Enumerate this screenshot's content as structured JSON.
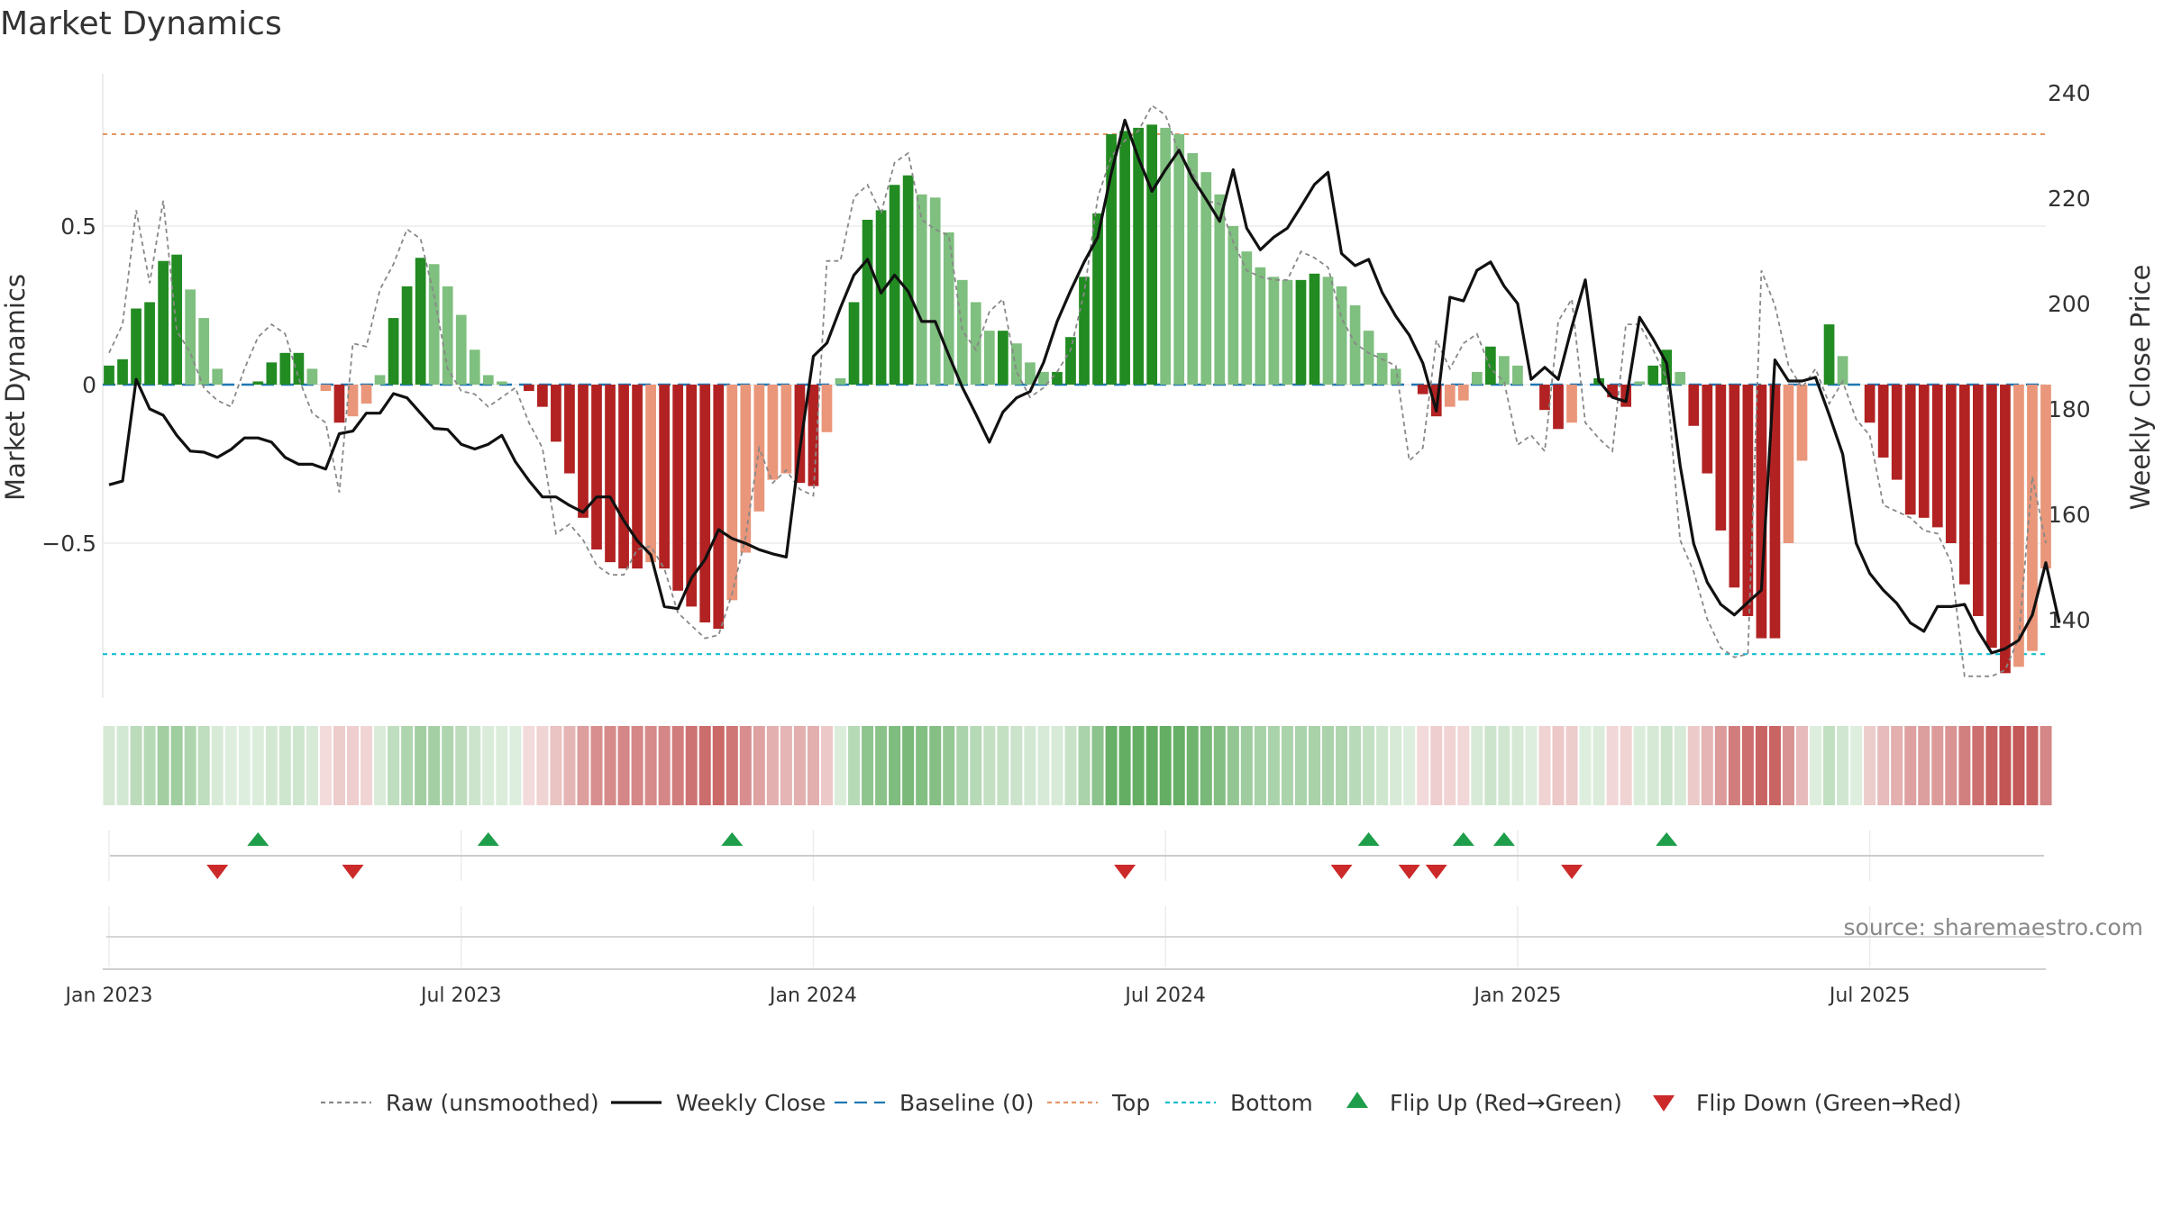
{
  "chart_data": {
    "type": "bar",
    "title": "Market Dynamics",
    "ylabel_left": "Market Dynamics",
    "ylabel_right": "Weekly Close Price",
    "source": "source: sharemaestro.com",
    "y_left_ticks": [
      {
        "value": 0.5,
        "label": "0.5"
      },
      {
        "value": 0,
        "label": "0"
      },
      {
        "value": -0.5,
        "label": "−0.5"
      }
    ],
    "y_right_ticks": [
      {
        "value": 240,
        "label": "240"
      },
      {
        "value": 220,
        "label": "220"
      },
      {
        "value": 200,
        "label": "200"
      },
      {
        "value": 180,
        "label": "180"
      },
      {
        "value": 160,
        "label": "160"
      },
      {
        "value": 140,
        "label": "140"
      }
    ],
    "x_ticks": [
      {
        "week": 1,
        "label": "Jan 2023"
      },
      {
        "week": 27,
        "label": "Jul 2023"
      },
      {
        "week": 53,
        "label": "Jan 2024"
      },
      {
        "week": 79,
        "label": "Jul 2024"
      },
      {
        "week": 105,
        "label": "Jan 2025"
      },
      {
        "week": 131,
        "label": "Jul 2025"
      }
    ],
    "ylim_left": [
      -0.98,
      0.98
    ],
    "ylim_right": [
      129,
      245
    ],
    "top_level": 0.79,
    "bottom_level": -0.85,
    "baseline": 0,
    "dynamics": [
      0.06,
      0.08,
      0.24,
      0.26,
      0.39,
      0.41,
      0.3,
      0.21,
      0.05,
      0,
      0,
      0.01,
      0.07,
      0.1,
      0.1,
      0.05,
      -0.02,
      -0.12,
      -0.1,
      -0.06,
      0.03,
      0.21,
      0.31,
      0.4,
      0.38,
      0.31,
      0.22,
      0.11,
      0.03,
      0.01,
      0,
      -0.02,
      -0.07,
      -0.18,
      -0.28,
      -0.42,
      -0.52,
      -0.56,
      -0.58,
      -0.58,
      -0.56,
      -0.58,
      -0.65,
      -0.7,
      -0.75,
      -0.77,
      -0.68,
      -0.53,
      -0.4,
      -0.3,
      -0.28,
      -0.31,
      -0.32,
      -0.15,
      0.02,
      0.26,
      0.52,
      0.55,
      0.63,
      0.66,
      0.6,
      0.59,
      0.48,
      0.33,
      0.26,
      0.17,
      0.17,
      0.13,
      0.07,
      0.04,
      0.04,
      0.15,
      0.34,
      0.54,
      0.79,
      0.8,
      0.81,
      0.82,
      0.81,
      0.79,
      0.73,
      0.67,
      0.6,
      0.5,
      0.42,
      0.37,
      0.34,
      0.33,
      0.33,
      0.35,
      0.34,
      0.31,
      0.25,
      0.17,
      0.1,
      0.05,
      0,
      -0.03,
      -0.1,
      -0.07,
      -0.05,
      0.04,
      0.12,
      0.09,
      0.06,
      0,
      -0.08,
      -0.14,
      -0.12,
      0,
      0.02,
      -0.04,
      -0.07,
      0.01,
      0.06,
      0.11,
      0.04,
      -0.13,
      -0.28,
      -0.46,
      -0.64,
      -0.73,
      -0.8,
      -0.8,
      -0.5,
      -0.24,
      0,
      0.19,
      0.09,
      0,
      -0.12,
      -0.23,
      -0.3,
      -0.41,
      -0.42,
      -0.45,
      -0.5,
      -0.63,
      -0.73,
      -0.83,
      -0.91,
      -0.89,
      -0.84,
      -0.58
    ],
    "raw": [
      0.1,
      0.19,
      0.55,
      0.32,
      0.58,
      0.17,
      0.1,
      -0.01,
      -0.05,
      -0.07,
      0.05,
      0.15,
      0.19,
      0.16,
      0.02,
      -0.09,
      -0.12,
      -0.34,
      0.13,
      0.12,
      0.3,
      0.38,
      0.49,
      0.46,
      0.28,
      0.05,
      -0.02,
      -0.03,
      -0.07,
      -0.04,
      -0.01,
      -0.12,
      -0.2,
      -0.47,
      -0.44,
      -0.49,
      -0.57,
      -0.6,
      -0.6,
      -0.52,
      -0.51,
      -0.58,
      -0.72,
      -0.76,
      -0.8,
      -0.79,
      -0.66,
      -0.48,
      -0.2,
      -0.31,
      -0.27,
      -0.33,
      -0.35,
      0.39,
      0.39,
      0.59,
      0.63,
      0.54,
      0.7,
      0.73,
      0.52,
      0.49,
      0.47,
      0.17,
      0.11,
      0.23,
      0.27,
      0.04,
      -0.04,
      -0.01,
      0.04,
      0.11,
      0.29,
      0.59,
      0.72,
      0.77,
      0.8,
      0.88,
      0.85,
      0.73,
      0.67,
      0.58,
      0.57,
      0.45,
      0.36,
      0.34,
      0.33,
      0.33,
      0.42,
      0.4,
      0.37,
      0.21,
      0.13,
      0.1,
      0.08,
      0.06,
      -0.24,
      -0.2,
      0.14,
      0.05,
      0.13,
      0.16,
      0.05,
      0.01,
      -0.19,
      -0.16,
      -0.21,
      0.2,
      0.27,
      -0.12,
      -0.17,
      -0.21,
      0.19,
      0.19,
      0.11,
      0.02,
      -0.49,
      -0.59,
      -0.74,
      -0.83,
      -0.86,
      -0.85,
      0.36,
      0.25,
      0.06,
      -0.01,
      0.05,
      -0.06,
      0.01,
      -0.11,
      -0.16,
      -0.38,
      -0.4,
      -0.42,
      -0.46,
      -0.47,
      -0.56,
      -0.92,
      -0.92,
      -0.92,
      -0.9,
      -0.8,
      -0.29,
      -0.5
    ],
    "close": [
      165.6,
      166.3,
      185.6,
      180,
      178.8,
      175,
      172,
      171.8,
      170.8,
      172.3,
      174.5,
      174.5,
      173.7,
      170.8,
      169.5,
      169.5,
      168.6,
      175.3,
      175.8,
      179.2,
      179.2,
      182.9,
      182.1,
      179.2,
      176.3,
      176.1,
      173.3,
      172.4,
      173.3,
      175,
      170,
      166.4,
      163.3,
      163.3,
      161.7,
      160.4,
      163.3,
      163.3,
      158.8,
      155,
      152.3,
      142.5,
      142.1,
      147.9,
      151.4,
      157.1,
      155.4,
      154.5,
      153.3,
      152.5,
      151.9,
      172.3,
      190,
      192.5,
      199.2,
      205.4,
      208.4,
      202,
      205.4,
      202.3,
      196.6,
      196.6,
      190.2,
      184.1,
      179,
      173.7,
      179.4,
      182.1,
      183.3,
      188.8,
      196.6,
      202.5,
      207.9,
      212.6,
      224.8,
      234.8,
      227.6,
      221.3,
      225.4,
      229.1,
      223.8,
      219.8,
      215.6,
      225.4,
      214.3,
      210.2,
      212.6,
      214.3,
      218.4,
      222.6,
      224.9,
      209.5,
      207.2,
      208.4,
      202.1,
      197.6,
      194,
      188.7,
      179.6,
      201.2,
      200.5,
      206.3,
      207.9,
      203.3,
      200,
      185.6,
      187.9,
      185.6,
      195.5,
      204.5,
      185.3,
      182.2,
      181.4,
      197.4,
      193.3,
      188.7,
      169.3,
      154.4,
      147.1,
      142.9,
      140.9,
      143.3,
      145.6,
      189.3,
      185.3,
      185.3,
      186,
      178.9,
      171.4,
      154.5,
      148.8,
      145.6,
      143.1,
      139.4,
      137.8,
      142.5,
      142.5,
      142.9,
      137.8,
      133.7,
      134.5,
      136.1,
      140.9,
      150.8,
      139.4
    ],
    "flips_up_week": [
      12,
      29,
      47,
      94,
      101,
      104,
      116
    ],
    "flips_down_week": [
      9,
      19,
      76,
      92,
      97,
      99,
      109
    ],
    "legend": [
      {
        "key": "raw",
        "label": "Raw (unsmoothed)",
        "style": "dotted",
        "color": "#888888"
      },
      {
        "key": "close",
        "label": "Weekly Close",
        "style": "solid",
        "color": "#111111"
      },
      {
        "key": "baseline",
        "label": "Baseline (0)",
        "style": "dashed",
        "color": "#1f77b4"
      },
      {
        "key": "top",
        "label": "Top",
        "style": "dotted",
        "color": "#e59866"
      },
      {
        "key": "bottom",
        "label": "Bottom",
        "style": "dotted",
        "color": "#17becf"
      },
      {
        "key": "flip_up",
        "label": "Flip Up (Red→Green)",
        "style": "triangle-up",
        "color": "#1e9e4a"
      },
      {
        "key": "flip_down",
        "label": "Flip Down (Green→Red)",
        "style": "triangle-down",
        "color": "#cc2a2a"
      }
    ],
    "legend_placement": "bottom",
    "colors": {
      "bull_strong": "#228b22",
      "bull_weak": "#7fbf7f",
      "bear_strong": "#b22222",
      "bear_weak": "#e9967a",
      "heat_pos": "#228b22",
      "heat_neg": "#b22222"
    }
  }
}
